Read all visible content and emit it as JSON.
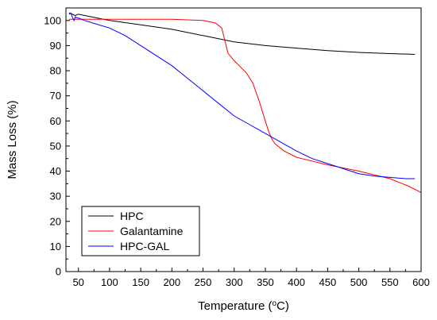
{
  "chart_data": {
    "type": "line",
    "xlabel": "Temperature (",
    "xlabel_sup": "o",
    "xlabel_unit": "C)",
    "ylabel": "Mass Loss (%)",
    "xlim": [
      30,
      600
    ],
    "ylim": [
      0,
      105
    ],
    "xticks": [
      50,
      100,
      150,
      200,
      250,
      300,
      350,
      400,
      450,
      500,
      550,
      600
    ],
    "yticks": [
      0,
      10,
      20,
      30,
      40,
      50,
      60,
      70,
      80,
      90,
      100
    ],
    "grid": false,
    "legend_position": "bottom-left",
    "series": [
      {
        "name": "HPC",
        "color": "#000000",
        "x": [
          35,
          40,
          45,
          50,
          60,
          80,
          100,
          150,
          200,
          250,
          300,
          350,
          400,
          450,
          500,
          550,
          590
        ],
        "y": [
          103,
          102.5,
          102,
          102.5,
          102,
          101,
          100,
          98.3,
          96.5,
          94,
          91.5,
          90,
          89,
          88,
          87.3,
          86.8,
          86.5
        ]
      },
      {
        "name": "Galantamine",
        "color": "#ff0000",
        "x": [
          35,
          40,
          50,
          100,
          150,
          200,
          250,
          270,
          280,
          290,
          300,
          310,
          320,
          330,
          340,
          350,
          355,
          360,
          365,
          370,
          380,
          400,
          450,
          500,
          550,
          580,
          600
        ],
        "y": [
          100.5,
          100.5,
          100.5,
          100.5,
          100.5,
          100.5,
          100,
          99,
          97,
          87,
          84,
          81.5,
          79,
          75,
          68,
          60,
          56,
          53,
          51,
          50,
          48,
          45.5,
          42.5,
          40,
          37,
          34,
          31.5
        ]
      },
      {
        "name": "HPC-GAL",
        "color": "#0000ff",
        "x": [
          35,
          38,
          40,
          43,
          45,
          48,
          50,
          60,
          80,
          100,
          125,
          150,
          175,
          200,
          225,
          250,
          275,
          300,
          325,
          350,
          375,
          400,
          425,
          450,
          475,
          500,
          525,
          550,
          575,
          590
        ],
        "y": [
          102.5,
          103,
          101.5,
          100,
          101.5,
          101,
          101,
          100,
          98.5,
          97,
          94,
          90,
          86,
          82,
          77,
          72,
          67,
          62,
          58.5,
          55,
          51.5,
          48,
          45,
          43,
          41,
          39,
          38,
          37.5,
          37,
          37
        ]
      }
    ]
  }
}
